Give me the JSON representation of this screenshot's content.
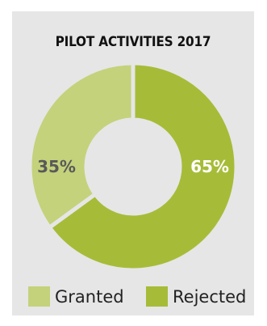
{
  "chart_data": {
    "type": "pie",
    "title": "PILOT ACTIVITIES 2017",
    "categories": [
      "Granted",
      "Rejected"
    ],
    "values": [
      35,
      65
    ],
    "labels": [
      "35%",
      "65%"
    ],
    "colors": [
      "#c4d27b",
      "#a6bc38"
    ],
    "label_colors": [
      "#595959",
      "#ffffff"
    ],
    "hole": "donut",
    "legend_position": "bottom"
  },
  "legend": {
    "items": [
      {
        "label": "Granted",
        "color": "#c4d27b"
      },
      {
        "label": "Rejected",
        "color": "#a6bc38"
      }
    ]
  },
  "colors": {
    "panel_background": "#e6e6e6",
    "separator": "#e6e6e6"
  }
}
